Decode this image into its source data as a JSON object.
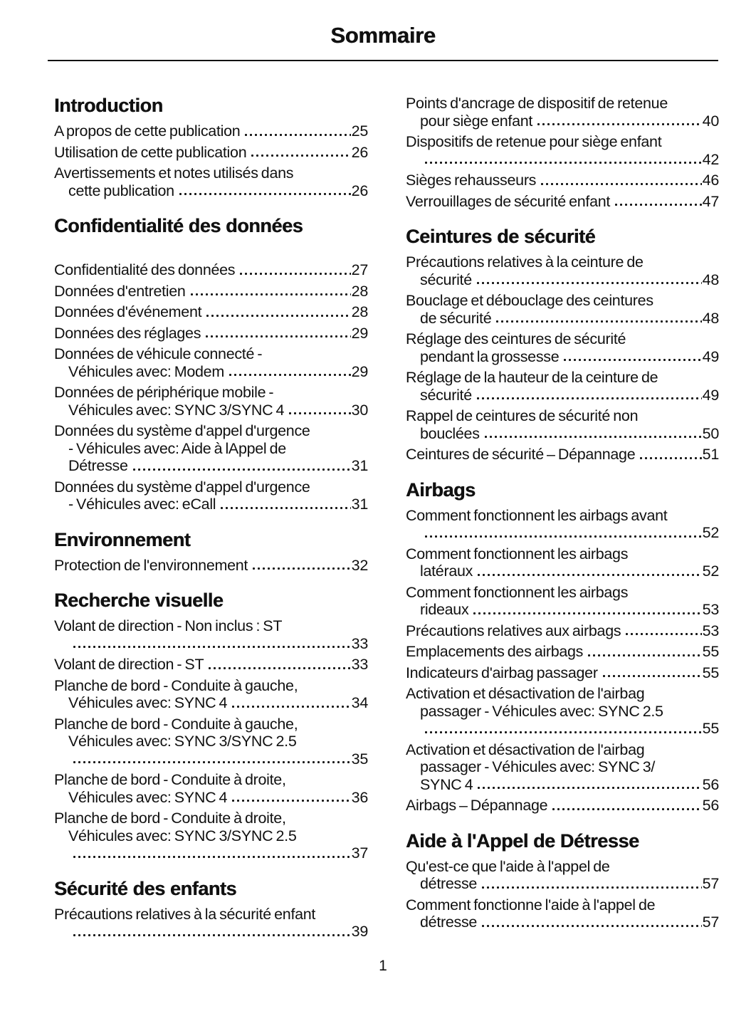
{
  "title": "Sommaire",
  "footer_page_number": "1",
  "colors": {
    "text": "#111111",
    "background": "#ffffff"
  },
  "columns": [
    {
      "sections": [
        {
          "heading": "Introduction",
          "entries": [
            {
              "lines": [
                "A propos de cette publication"
              ],
              "page": "25"
            },
            {
              "lines": [
                "Utilisation de cette publication"
              ],
              "page": "26"
            },
            {
              "lines": [
                "Avertissements et notes utilisés dans",
                "cette publication"
              ],
              "page": "26"
            }
          ]
        },
        {
          "heading": "Confidentialité des données",
          "extra_gap": true,
          "entries": [
            {
              "lines": [
                "Confidentialité des données"
              ],
              "page": "27"
            },
            {
              "lines": [
                "Données d'entretien"
              ],
              "page": "28"
            },
            {
              "lines": [
                "Données d'événement"
              ],
              "page": "28"
            },
            {
              "lines": [
                "Données des réglages"
              ],
              "page": "29"
            },
            {
              "lines": [
                "Données de véhicule connecté -",
                "Véhicules avec: Modem"
              ],
              "page": "29"
            },
            {
              "lines": [
                "Données de périphérique mobile -",
                "Véhicules avec: SYNC 3/SYNC 4"
              ],
              "page": "30"
            },
            {
              "lines": [
                "Données du système d'appel d'urgence",
                "- Véhicules avec: Aide à lAppel de",
                "Détresse"
              ],
              "page": "31"
            },
            {
              "lines": [
                "Données du système d'appel d'urgence",
                "- Véhicules avec: eCall"
              ],
              "page": "31"
            }
          ]
        },
        {
          "heading": "Environnement",
          "entries": [
            {
              "lines": [
                "Protection de l'environnement"
              ],
              "page": "32"
            }
          ]
        },
        {
          "heading": "Recherche visuelle",
          "entries": [
            {
              "lines": [
                "Volant de direction - Non inclus : ST",
                ""
              ],
              "page": "33"
            },
            {
              "lines": [
                "Volant de direction - ST"
              ],
              "page": "33"
            },
            {
              "lines": [
                "Planche de bord - Conduite à gauche,",
                "Véhicules avec: SYNC 4"
              ],
              "page": "34"
            },
            {
              "lines": [
                "Planche de bord - Conduite à gauche,",
                "Véhicules avec: SYNC 3/SYNC 2.5",
                ""
              ],
              "page": "35"
            },
            {
              "lines": [
                "Planche de bord - Conduite à droite,",
                "Véhicules avec: SYNC 4"
              ],
              "page": "36"
            },
            {
              "lines": [
                "Planche de bord - Conduite à droite,",
                "Véhicules avec: SYNC 3/SYNC 2.5",
                ""
              ],
              "page": "37"
            }
          ]
        },
        {
          "heading": "Sécurité des enfants",
          "entries": [
            {
              "lines": [
                "Précautions relatives à la sécurité enfant",
                ""
              ],
              "page": "39"
            }
          ]
        }
      ]
    },
    {
      "sections": [
        {
          "heading": "",
          "entries": [
            {
              "lines": [
                "Points d'ancrage de dispositif de retenue",
                "pour siège enfant"
              ],
              "page": "40"
            },
            {
              "lines": [
                "Dispositifs de retenue pour siège enfant",
                ""
              ],
              "page": "42"
            },
            {
              "lines": [
                "Sièges rehausseurs"
              ],
              "page": "46"
            },
            {
              "lines": [
                "Verrouillages de sécurité enfant"
              ],
              "page": "47"
            }
          ]
        },
        {
          "heading": "Ceintures de sécurité",
          "entries": [
            {
              "lines": [
                "Précautions relatives à la ceinture de",
                "sécurité"
              ],
              "page": "48"
            },
            {
              "lines": [
                "Bouclage et débouclage des ceintures",
                "de sécurité"
              ],
              "page": "48"
            },
            {
              "lines": [
                "Réglage des ceintures de sécurité",
                "pendant la grossesse"
              ],
              "page": "49"
            },
            {
              "lines": [
                "Réglage de la hauteur de la ceinture de",
                "sécurité"
              ],
              "page": "49"
            },
            {
              "lines": [
                "Rappel de ceintures de sécurité non",
                "bouclées"
              ],
              "page": "50"
            },
            {
              "lines": [
                "Ceintures de sécurité – Dépannage"
              ],
              "page": "51"
            }
          ]
        },
        {
          "heading": "Airbags",
          "entries": [
            {
              "lines": [
                "Comment fonctionnent les airbags avant",
                ""
              ],
              "page": "52"
            },
            {
              "lines": [
                "Comment fonctionnent les airbags",
                "latéraux"
              ],
              "page": "52"
            },
            {
              "lines": [
                "Comment fonctionnent les airbags",
                "rideaux"
              ],
              "page": "53"
            },
            {
              "lines": [
                "Précautions relatives aux airbags"
              ],
              "page": "53"
            },
            {
              "lines": [
                "Emplacements des airbags"
              ],
              "page": "55"
            },
            {
              "lines": [
                "Indicateurs d'airbag passager"
              ],
              "page": "55"
            },
            {
              "lines": [
                "Activation et désactivation de l'airbag",
                "passager - Véhicules avec: SYNC 2.5",
                ""
              ],
              "page": "55"
            },
            {
              "lines": [
                "Activation et désactivation de l'airbag",
                "passager - Véhicules avec: SYNC 3/",
                "SYNC 4"
              ],
              "page": "56"
            },
            {
              "lines": [
                "Airbags – Dépannage"
              ],
              "page": "56"
            }
          ]
        },
        {
          "heading": "Aide à l'Appel de Détresse",
          "entries": [
            {
              "lines": [
                "Qu'est-ce que l'aide à l'appel de",
                "détresse"
              ],
              "page": "57"
            },
            {
              "lines": [
                "Comment fonctionne l'aide à l'appel de",
                "détresse"
              ],
              "page": "57"
            }
          ]
        }
      ]
    }
  ]
}
